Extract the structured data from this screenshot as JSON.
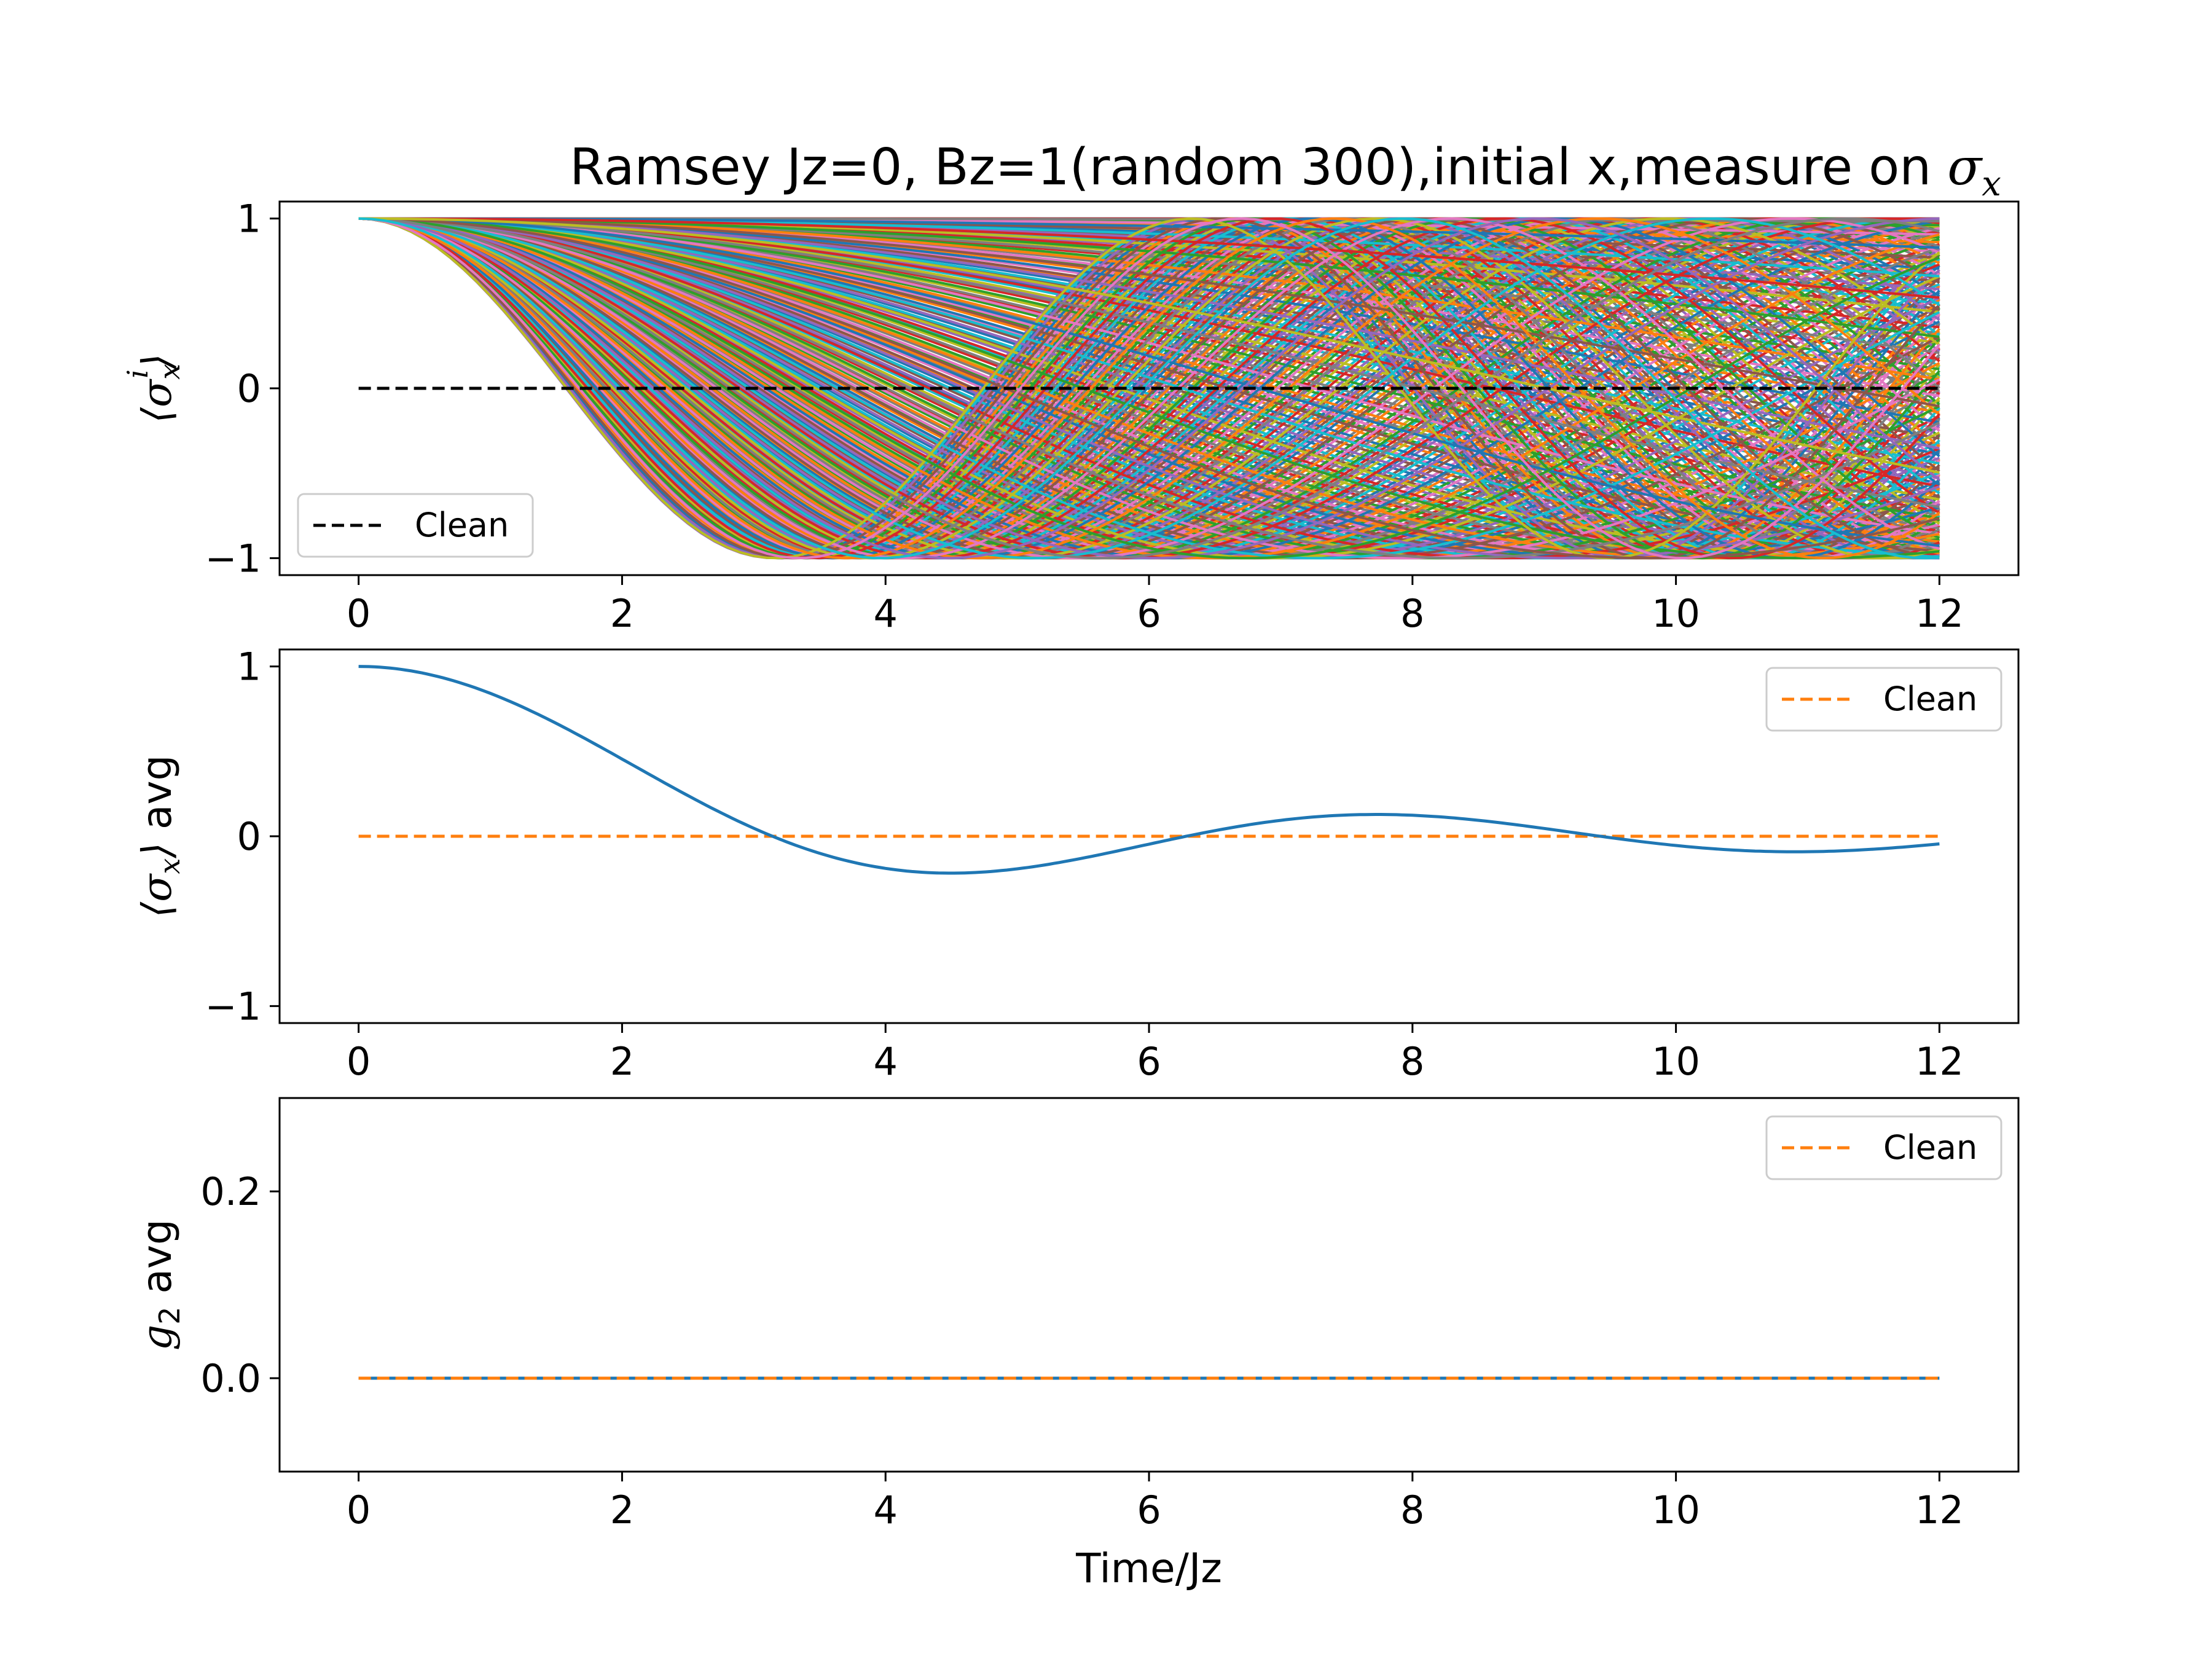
{
  "figure_title": "Ramsey Jz=0, Bz=1(random 300),initial x,measure on ",
  "figure_title_math": "σ",
  "figure_title_math_sub": "x",
  "colors": {
    "clean_black": "#000000",
    "clean_orange": "#ff7f0e",
    "avg_blue": "#1f77b4",
    "palette": [
      "#1f77b4",
      "#ff7f0e",
      "#2ca02c",
      "#d62728",
      "#9467bd",
      "#8c564b",
      "#e377c2",
      "#7f7f7f",
      "#bcbd22",
      "#17becf"
    ]
  },
  "chart_data": [
    {
      "type": "line",
      "ylabel": "⟨σ_x^i⟩",
      "xlabel": "",
      "xlim": [
        -0.6,
        12.6
      ],
      "ylim": [
        -1.1,
        1.1
      ],
      "xticks": [
        "0",
        "2",
        "4",
        "6",
        "8",
        "10",
        "12"
      ],
      "yticks": [
        "−1",
        "0",
        "1"
      ],
      "grid": false,
      "legend": {
        "position": "lower-left",
        "entries": [
          {
            "label": "Clean",
            "style": "dashed",
            "color": "#000000"
          }
        ]
      },
      "series": [
        {
          "kind": "ensemble",
          "count": 300,
          "function": "cos(B_i * t)",
          "B_range": [
            0,
            1
          ],
          "t_range": [
            0,
            12
          ]
        },
        {
          "name": "Clean",
          "style": "dashed",
          "x": [
            0,
            12
          ],
          "y": [
            0,
            0
          ]
        }
      ]
    },
    {
      "type": "line",
      "ylabel": "⟨σ_x⟩ avg",
      "xlabel": "",
      "xlim": [
        -0.6,
        12.6
      ],
      "ylim": [
        -1.1,
        1.1
      ],
      "xticks": [
        "0",
        "2",
        "4",
        "6",
        "8",
        "10",
        "12"
      ],
      "yticks": [
        "−1",
        "0",
        "1"
      ],
      "grid": false,
      "legend": {
        "position": "upper-right",
        "entries": [
          {
            "label": "Clean",
            "style": "dashed",
            "color": "#ff7f0e"
          }
        ]
      },
      "series": [
        {
          "kind": "average",
          "function": "sin(t)/t",
          "x": [
            0,
            1,
            2,
            3,
            4,
            4.5,
            5,
            6,
            7,
            7.5,
            8,
            9,
            10,
            10.5,
            11,
            12
          ],
          "y": [
            1,
            0.84,
            0.45,
            0.05,
            -0.19,
            -0.22,
            -0.19,
            -0.05,
            0.09,
            0.13,
            0.12,
            0.05,
            -0.05,
            -0.08,
            -0.09,
            -0.04
          ]
        },
        {
          "name": "Clean",
          "style": "dashed",
          "x": [
            0,
            12
          ],
          "y": [
            0,
            0
          ]
        }
      ]
    },
    {
      "type": "line",
      "ylabel": "g_2 avg",
      "xlabel": "Time/Jz",
      "xlim": [
        -0.6,
        12.6
      ],
      "ylim": [
        -0.1,
        0.3
      ],
      "xticks": [
        "0",
        "2",
        "4",
        "6",
        "8",
        "10",
        "12"
      ],
      "yticks": [
        "0.0",
        "0.2"
      ],
      "grid": false,
      "legend": {
        "position": "upper-right",
        "entries": [
          {
            "label": "Clean",
            "style": "dashed",
            "color": "#ff7f0e"
          }
        ]
      },
      "series": [
        {
          "kind": "average",
          "x": [
            0,
            12
          ],
          "y": [
            0,
            0
          ]
        },
        {
          "name": "Clean",
          "style": "dashed",
          "x": [
            0,
            12
          ],
          "y": [
            0,
            0
          ]
        }
      ]
    }
  ]
}
